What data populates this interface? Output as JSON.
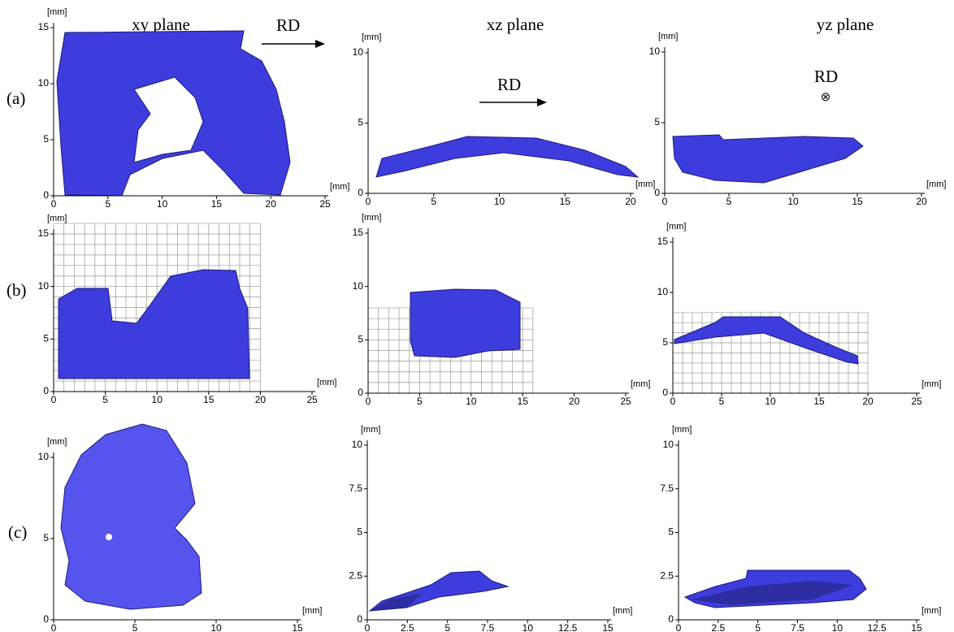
{
  "columns": [
    "xy plane",
    "xz plane",
    "yz plane"
  ],
  "rows": [
    "(a)",
    "(b)",
    "(c)"
  ],
  "annotations": {
    "a_xy_rd": "RD",
    "a_xz_rd": "RD",
    "a_yz_rd": "RD",
    "a_yz_symbol": "⊗"
  },
  "panels": [
    {
      "xlabel": "[mm]",
      "ylabel": "[mm]",
      "xlim": [
        0,
        25
      ],
      "xticks": [
        0,
        5,
        10,
        15,
        20,
        25
      ],
      "ylim": [
        0,
        15
      ],
      "yticks": [
        0,
        5,
        10,
        15
      ],
      "grid": false
    },
    {
      "xlabel": "[mm]",
      "ylabel": "[mm]",
      "xlim": [
        0,
        20
      ],
      "xticks": [
        0,
        5,
        10,
        15,
        20
      ],
      "ylim": [
        0,
        10
      ],
      "yticks": [
        0,
        5,
        10
      ],
      "grid": false
    },
    {
      "xlabel": "[mm]",
      "ylabel": "[mm]",
      "xlim": [
        0,
        20
      ],
      "xticks": [
        0,
        5,
        10,
        15,
        20
      ],
      "ylim": [
        0,
        10
      ],
      "yticks": [
        0,
        5,
        10
      ],
      "grid": false
    },
    {
      "xlabel": "[mm]",
      "ylabel": "[mm]",
      "xlim": [
        0,
        25
      ],
      "xticks": [
        0,
        5,
        10,
        15,
        20,
        25
      ],
      "ylim": [
        0,
        15
      ],
      "yticks": [
        0,
        5,
        10,
        15
      ],
      "grid": true
    },
    {
      "xlabel": "[mm]",
      "ylabel": "[mm]",
      "xlim": [
        0,
        25
      ],
      "xticks": [
        0,
        5,
        10,
        15,
        20,
        25
      ],
      "ylim": [
        0,
        15
      ],
      "yticks": [
        0,
        5,
        10,
        15
      ],
      "grid": true
    },
    {
      "xlabel": "[mm]",
      "ylabel": "[mm]",
      "xlim": [
        0,
        25
      ],
      "xticks": [
        0,
        5,
        10,
        15,
        20,
        25
      ],
      "ylim": [
        0,
        15
      ],
      "yticks": [
        0,
        5,
        10,
        15
      ],
      "grid": true
    },
    {
      "xlabel": "[mm]",
      "ylabel": "[mm]",
      "xlim": [
        0,
        15
      ],
      "xticks": [
        0,
        5,
        10,
        15
      ],
      "ylim": [
        0,
        10
      ],
      "yticks": [
        0,
        5,
        10
      ],
      "grid": false
    },
    {
      "xlabel": "[mm]",
      "ylabel": "[mm]",
      "xlim": [
        0,
        15
      ],
      "xticks": [
        0,
        2.5,
        5,
        7.5,
        10,
        12.5,
        15
      ],
      "ylim": [
        0,
        10
      ],
      "yticks": [
        0,
        2.5,
        5,
        7.5,
        10
      ],
      "grid": false
    },
    {
      "xlabel": "[mm]",
      "ylabel": "[mm]",
      "xlim": [
        0,
        15
      ],
      "xticks": [
        0,
        2.5,
        5,
        7.5,
        10,
        12.5,
        15
      ],
      "ylim": [
        0,
        10
      ],
      "yticks": [
        0,
        2.5,
        5,
        7.5,
        10
      ],
      "grid": false
    }
  ]
}
